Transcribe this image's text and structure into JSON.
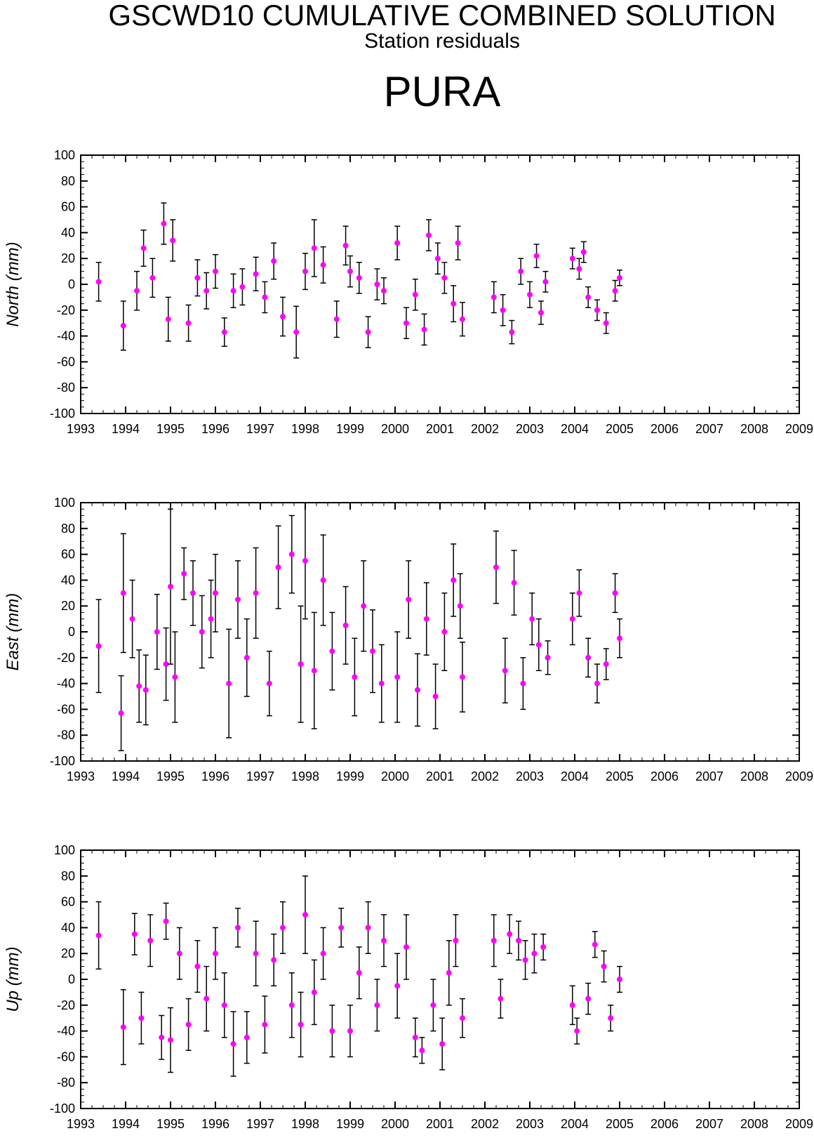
{
  "header": {
    "title": "GSCWD10 CUMULATIVE COMBINED SOLUTION",
    "subtitle": "Station residuals",
    "station": "PURA"
  },
  "colors": {
    "point": "#ff00ff",
    "error_bar": "#000000",
    "axes": "#000000"
  },
  "chart_data": [
    {
      "type": "scatter",
      "id": "north",
      "ylabel": "North (mm)",
      "xlim": [
        1993,
        2009
      ],
      "ylim": [
        -100,
        100
      ],
      "xticks": [
        "1993",
        "1994",
        "1995",
        "1996",
        "1997",
        "1998",
        "1999",
        "2000",
        "2001",
        "2002",
        "2003",
        "2004",
        "2005",
        "2006",
        "2007",
        "2008",
        "2009"
      ],
      "yticks": [
        "100",
        "80",
        "60",
        "40",
        "20",
        "0",
        "-20",
        "-40",
        "-60",
        "-80",
        "-100"
      ],
      "error_bars": true,
      "points": [
        [
          1993.4,
          2,
          15
        ],
        [
          1993.95,
          -32,
          19
        ],
        [
          1994.25,
          -5,
          15
        ],
        [
          1994.4,
          28,
          14
        ],
        [
          1994.6,
          5,
          15
        ],
        [
          1994.85,
          47,
          16
        ],
        [
          1994.95,
          -27,
          17
        ],
        [
          1995.05,
          34,
          16
        ],
        [
          1995.4,
          -30,
          14
        ],
        [
          1995.6,
          5,
          14
        ],
        [
          1995.8,
          -5,
          14
        ],
        [
          1996.0,
          10,
          13
        ],
        [
          1996.2,
          -37,
          11
        ],
        [
          1996.4,
          -5,
          13
        ],
        [
          1996.6,
          -2,
          14
        ],
        [
          1996.9,
          8,
          13
        ],
        [
          1997.1,
          -10,
          12
        ],
        [
          1997.3,
          18,
          14
        ],
        [
          1997.5,
          -25,
          15
        ],
        [
          1997.8,
          -37,
          20
        ],
        [
          1998.0,
          10,
          14
        ],
        [
          1998.2,
          28,
          22
        ],
        [
          1998.4,
          15,
          14
        ],
        [
          1998.7,
          -27,
          14
        ],
        [
          1998.9,
          30,
          15
        ],
        [
          1999.0,
          10,
          12
        ],
        [
          1999.2,
          5,
          12
        ],
        [
          1999.4,
          -37,
          12
        ],
        [
          1999.6,
          0,
          12
        ],
        [
          1999.75,
          -5,
          10
        ],
        [
          2000.05,
          32,
          13
        ],
        [
          2000.25,
          -30,
          12
        ],
        [
          2000.45,
          -8,
          12
        ],
        [
          2000.65,
          -35,
          12
        ],
        [
          2000.75,
          38,
          12
        ],
        [
          2000.95,
          20,
          12
        ],
        [
          2001.1,
          5,
          12
        ],
        [
          2001.3,
          -15,
          14
        ],
        [
          2001.4,
          32,
          13
        ],
        [
          2001.5,
          -27,
          13
        ],
        [
          2002.2,
          -10,
          12
        ],
        [
          2002.4,
          -20,
          12
        ],
        [
          2002.6,
          -37,
          9
        ],
        [
          2002.8,
          10,
          10
        ],
        [
          2003.0,
          -8,
          10
        ],
        [
          2003.15,
          22,
          9
        ],
        [
          2003.25,
          -22,
          9
        ],
        [
          2003.35,
          2,
          8
        ],
        [
          2003.95,
          20,
          8
        ],
        [
          2004.1,
          12,
          8
        ],
        [
          2004.2,
          25,
          8
        ],
        [
          2004.3,
          -10,
          8
        ],
        [
          2004.5,
          -20,
          8
        ],
        [
          2004.7,
          -30,
          8
        ],
        [
          2004.9,
          -5,
          8
        ],
        [
          2005.0,
          5,
          6
        ]
      ]
    },
    {
      "type": "scatter",
      "id": "east",
      "ylabel": "East (mm)",
      "xlim": [
        1993,
        2009
      ],
      "ylim": [
        -100,
        100
      ],
      "xticks": [
        "1993",
        "1994",
        "1995",
        "1996",
        "1997",
        "1998",
        "1999",
        "2000",
        "2001",
        "2002",
        "2003",
        "2004",
        "2005",
        "2006",
        "2007",
        "2008",
        "2009"
      ],
      "yticks": [
        "100",
        "80",
        "60",
        "40",
        "20",
        "0",
        "-20",
        "-40",
        "-60",
        "-80",
        "-100"
      ],
      "error_bars": true,
      "points": [
        [
          1993.4,
          -11,
          36
        ],
        [
          1993.9,
          -63,
          29
        ],
        [
          1993.95,
          30,
          46
        ],
        [
          1994.15,
          10,
          30
        ],
        [
          1994.3,
          -42,
          28
        ],
        [
          1994.45,
          -45,
          27
        ],
        [
          1994.7,
          0,
          29
        ],
        [
          1994.9,
          -25,
          28
        ],
        [
          1995.0,
          35,
          60
        ],
        [
          1995.1,
          -35,
          35
        ],
        [
          1995.3,
          45,
          20
        ],
        [
          1995.5,
          30,
          25
        ],
        [
          1995.7,
          0,
          28
        ],
        [
          1995.9,
          10,
          30
        ],
        [
          1996.0,
          30,
          30
        ],
        [
          1996.3,
          -40,
          42
        ],
        [
          1996.5,
          25,
          30
        ],
        [
          1996.7,
          -20,
          30
        ],
        [
          1996.9,
          30,
          35
        ],
        [
          1997.2,
          -40,
          25
        ],
        [
          1997.4,
          50,
          32
        ],
        [
          1997.7,
          60,
          30
        ],
        [
          1997.9,
          -25,
          45
        ],
        [
          1998.0,
          55,
          45
        ],
        [
          1998.2,
          -30,
          45
        ],
        [
          1998.4,
          40,
          35
        ],
        [
          1998.6,
          -15,
          30
        ],
        [
          1998.9,
          5,
          30
        ],
        [
          1999.1,
          -35,
          30
        ],
        [
          1999.3,
          20,
          35
        ],
        [
          1999.5,
          -15,
          32
        ],
        [
          1999.7,
          -40,
          30
        ],
        [
          2000.05,
          -35,
          35
        ],
        [
          2000.3,
          25,
          30
        ],
        [
          2000.5,
          -45,
          28
        ],
        [
          2000.7,
          10,
          28
        ],
        [
          2000.9,
          -50,
          25
        ],
        [
          2001.1,
          0,
          30
        ],
        [
          2001.3,
          40,
          28
        ],
        [
          2001.45,
          20,
          25
        ],
        [
          2001.5,
          -35,
          27
        ],
        [
          2002.25,
          50,
          28
        ],
        [
          2002.45,
          -30,
          25
        ],
        [
          2002.65,
          38,
          25
        ],
        [
          2002.85,
          -40,
          20
        ],
        [
          2003.05,
          10,
          20
        ],
        [
          2003.2,
          -10,
          20
        ],
        [
          2003.4,
          -20,
          13
        ],
        [
          2003.95,
          10,
          20
        ],
        [
          2004.1,
          30,
          18
        ],
        [
          2004.3,
          -20,
          15
        ],
        [
          2004.5,
          -40,
          15
        ],
        [
          2004.7,
          -25,
          12
        ],
        [
          2004.9,
          30,
          15
        ],
        [
          2005.0,
          -5,
          15
        ]
      ]
    },
    {
      "type": "scatter",
      "id": "up",
      "ylabel": "Up (mm)",
      "xlim": [
        1993,
        2009
      ],
      "ylim": [
        -100,
        100
      ],
      "xticks": [
        "1993",
        "1994",
        "1995",
        "1996",
        "1997",
        "1998",
        "1999",
        "2000",
        "2001",
        "2002",
        "2003",
        "2004",
        "2005",
        "2006",
        "2007",
        "2008",
        "2009"
      ],
      "yticks": [
        "100",
        "80",
        "60",
        "40",
        "20",
        "0",
        "-20",
        "-40",
        "-60",
        "-80",
        "-100"
      ],
      "error_bars": true,
      "points": [
        [
          1993.4,
          34,
          26
        ],
        [
          1993.95,
          -37,
          29
        ],
        [
          1994.2,
          35,
          16
        ],
        [
          1994.35,
          -30,
          20
        ],
        [
          1994.55,
          30,
          20
        ],
        [
          1994.8,
          -45,
          17
        ],
        [
          1994.9,
          45,
          14
        ],
        [
          1995.0,
          -47,
          25
        ],
        [
          1995.2,
          20,
          20
        ],
        [
          1995.4,
          -35,
          20
        ],
        [
          1995.6,
          10,
          20
        ],
        [
          1995.8,
          -15,
          25
        ],
        [
          1996.0,
          20,
          20
        ],
        [
          1996.2,
          -20,
          25
        ],
        [
          1996.4,
          -50,
          25
        ],
        [
          1996.5,
          40,
          15
        ],
        [
          1996.7,
          -45,
          20
        ],
        [
          1996.9,
          20,
          25
        ],
        [
          1997.1,
          -35,
          22
        ],
        [
          1997.3,
          15,
          20
        ],
        [
          1997.5,
          40,
          20
        ],
        [
          1997.7,
          -20,
          25
        ],
        [
          1997.9,
          -35,
          25
        ],
        [
          1998.0,
          50,
          30
        ],
        [
          1998.2,
          -10,
          25
        ],
        [
          1998.4,
          20,
          20
        ],
        [
          1998.6,
          -40,
          20
        ],
        [
          1998.8,
          40,
          15
        ],
        [
          1999.0,
          -40,
          20
        ],
        [
          1999.2,
          5,
          20
        ],
        [
          1999.4,
          40,
          20
        ],
        [
          1999.6,
          -20,
          20
        ],
        [
          1999.75,
          30,
          20
        ],
        [
          2000.05,
          -5,
          25
        ],
        [
          2000.25,
          25,
          25
        ],
        [
          2000.45,
          -45,
          15
        ],
        [
          2000.6,
          -55,
          10
        ],
        [
          2000.85,
          -20,
          20
        ],
        [
          2001.05,
          -50,
          20
        ],
        [
          2001.2,
          5,
          25
        ],
        [
          2001.35,
          30,
          20
        ],
        [
          2001.5,
          -30,
          15
        ],
        [
          2002.2,
          30,
          20
        ],
        [
          2002.35,
          -15,
          15
        ],
        [
          2002.55,
          35,
          15
        ],
        [
          2002.75,
          30,
          15
        ],
        [
          2002.9,
          15,
          15
        ],
        [
          2003.1,
          20,
          15
        ],
        [
          2003.3,
          25,
          10
        ],
        [
          2003.95,
          -20,
          15
        ],
        [
          2004.05,
          -40,
          10
        ],
        [
          2004.3,
          -15,
          12
        ],
        [
          2004.45,
          27,
          10
        ],
        [
          2004.65,
          10,
          12
        ],
        [
          2004.8,
          -30,
          10
        ],
        [
          2005.0,
          0,
          10
        ]
      ]
    }
  ]
}
